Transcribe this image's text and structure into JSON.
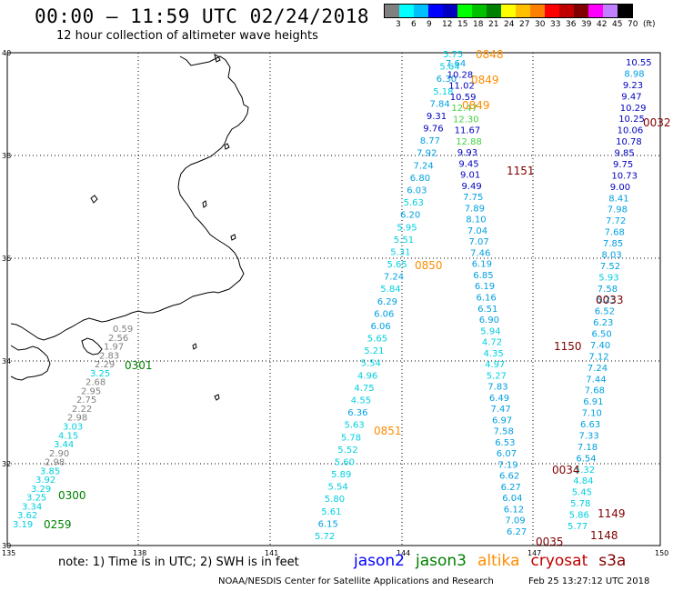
{
  "title": "00:00 – 11:59 UTC 02/24/2018",
  "subtitle": "12 hour collection of altimeter wave heights",
  "legend": {
    "unit": "(ft)",
    "colors": [
      "#808080",
      "#00ffff",
      "#00bfff",
      "#0000ff",
      "#0000c0",
      "#00ff00",
      "#00c000",
      "#008000",
      "#ffff00",
      "#ffc000",
      "#ff8000",
      "#ff0000",
      "#c00000",
      "#800000",
      "#ff00ff",
      "#c080ff",
      "#000000"
    ],
    "ticks": [
      "3",
      "6",
      "9",
      "12",
      "15",
      "18",
      "21",
      "24",
      "27",
      "30",
      "33",
      "36",
      "39",
      "42",
      "45",
      "70"
    ]
  },
  "axes": {
    "lat_labels": [
      "40",
      "38",
      "36",
      "34",
      "32",
      "30"
    ],
    "lon_labels": [
      "135",
      "138",
      "141",
      "144",
      "147",
      "150"
    ]
  },
  "note": "note:  1) Time is in UTC;  2) SWH is in feet",
  "satellites": [
    {
      "name": "jason2",
      "color": "#0000ff"
    },
    {
      "name": "jason3",
      "color": "#008000"
    },
    {
      "name": "altika",
      "color": "#ff8c00"
    },
    {
      "name": "cryosat",
      "color": "#c00000"
    },
    {
      "name": "s3a",
      "color": "#800000"
    }
  ],
  "footer_left": "NOAA/NESDIS Center for Satellite Applications and Research",
  "footer_right": "Feb 25 13:27:12 UTC 2018",
  "tracks": {
    "track_a": {
      "values": [
        "0.59",
        "2.56",
        "1.97",
        "2.83",
        "2.29",
        "3.25",
        "2.68",
        "2.95",
        "2.75",
        "2.22",
        "2.98",
        "3.03",
        "4.15",
        "3.44",
        "2.90",
        "2.98",
        "3.85",
        "3.92",
        "3.29",
        "3.25",
        "3.34",
        "3.62",
        "3.19"
      ]
    },
    "track_b": {
      "values": [
        "5.75",
        "5.64",
        "6.30",
        "5.18",
        "7.84",
        "9.31",
        "9.76",
        "8.77",
        "7.92",
        "7.24",
        "6.80",
        "6.03",
        "5.63",
        "6.20",
        "5.95",
        "5.51",
        "5.31",
        "5.65",
        "7.24",
        "5.84",
        "6.29",
        "6.06",
        "6.06",
        "5.65",
        "5.21",
        "5.54",
        "4.96",
        "4.75",
        "4.55",
        "6.36",
        "5.63",
        "5.78",
        "5.52",
        "5.60",
        "5.89",
        "5.54",
        "5.80",
        "5.61",
        "6.15",
        "5.72"
      ]
    },
    "track_c": {
      "values": [
        "7.64",
        "10.28",
        "11.02",
        "10.59",
        "12.47",
        "12.30",
        "11.67",
        "12.88",
        "9.93",
        "9.45",
        "9.01",
        "9.49",
        "7.75",
        "7.89",
        "8.10",
        "7.04",
        "7.07",
        "7.46",
        "6.19",
        "6.85",
        "6.19",
        "6.16",
        "6.51",
        "6.90",
        "5.94",
        "4.72",
        "4.35",
        "4.97",
        "5.27",
        "7.83",
        "6.49",
        "7.47",
        "6.97",
        "7.58",
        "6.53",
        "6.07",
        "7.19",
        "6.62",
        "6.27",
        "6.04",
        "6.12",
        "7.09",
        "6.27"
      ]
    },
    "track_d": {
      "values": [
        "10.55",
        "8.98",
        "9.23",
        "9.47",
        "10.29",
        "10.25",
        "10.06",
        "10.78",
        "9.85",
        "9.75",
        "10.73",
        "9.00",
        "8.41",
        "7.98",
        "7.72",
        "7.68",
        "7.85",
        "8.03",
        "7.52",
        "5.93",
        "7.58",
        "6.23",
        "6.52",
        "6.23",
        "6.50",
        "7.40",
        "7.12",
        "7.24",
        "7.44",
        "7.68",
        "6.91",
        "7.10",
        "6.63",
        "7.33",
        "7.18",
        "6.54",
        "5.32",
        "4.84",
        "5.45",
        "5.78",
        "5.86",
        "5.77"
      ]
    },
    "times": [
      {
        "label": "0848",
        "color": "#ff8c00"
      },
      {
        "label": "0849",
        "color": "#ff8c00"
      },
      {
        "label": "0849",
        "color": "#ff8c00"
      },
      {
        "label": "0032",
        "color": "#800000"
      },
      {
        "label": "1151",
        "color": "#800000"
      },
      {
        "label": "0850",
        "color": "#ff8c00"
      },
      {
        "label": "0033",
        "color": "#800000"
      },
      {
        "label": "1150",
        "color": "#800000"
      },
      {
        "label": "0301",
        "color": "#008000"
      },
      {
        "label": "0851",
        "color": "#ff8c00"
      },
      {
        "label": "0034",
        "color": "#800000"
      },
      {
        "label": "0300",
        "color": "#008000"
      },
      {
        "label": "0259",
        "color": "#008000"
      },
      {
        "label": "1149",
        "color": "#800000"
      },
      {
        "label": "1148",
        "color": "#800000"
      },
      {
        "label": "0035",
        "color": "#800000"
      }
    ]
  }
}
